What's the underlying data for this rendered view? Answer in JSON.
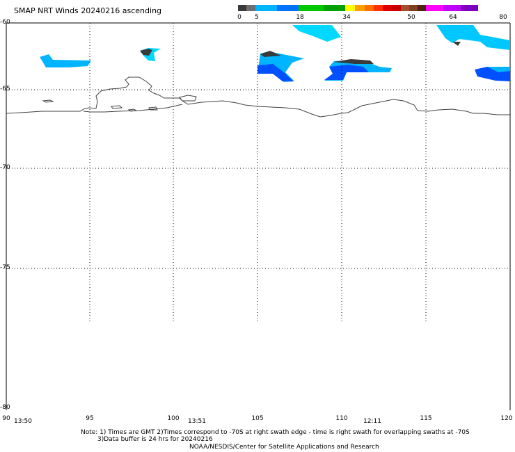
{
  "title": "SMAP NRT Winds 20240216 ascending",
  "colorbar": {
    "labels": [
      "0",
      "5",
      "18",
      "34",
      "50",
      "64",
      "80"
    ],
    "segments": [
      "#3a3a3a",
      "#6e6e6e",
      "#00b4ff",
      "#0070ff",
      "#00c800",
      "#00a000",
      "#ffff00",
      "#ffa000",
      "#ff7000",
      "#ff3000",
      "#e00000",
      "#c80000",
      "#a05030",
      "#804020",
      "#502010",
      "#ff00ff",
      "#c000ff",
      "#8000c0"
    ]
  },
  "lat_labels": [
    "-60",
    "-65",
    "-70",
    "-75",
    "-80"
  ],
  "lon_labels": [
    "90",
    "95",
    "100",
    "105",
    "110",
    "115",
    "120"
  ],
  "swath_times": [
    "13:50",
    "13:51",
    "12:11"
  ],
  "notes": [
    "Note: 1) Times are GMT 2)Times correspond to -70S at right swath edge - time is right swath for overlapping swaths at -70S",
    "3)Data buffer is 24 hrs for 20240216",
    "NOAA/NESDIS/Center for Satellite Applications and Research"
  ]
}
